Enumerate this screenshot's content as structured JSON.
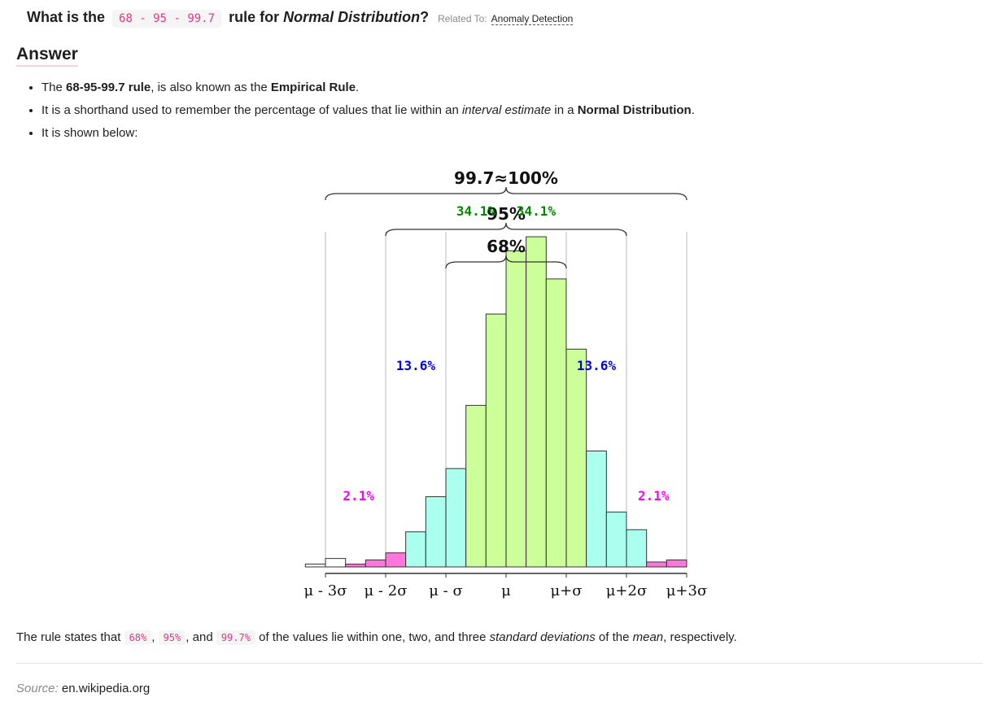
{
  "question": {
    "prefix": "What is the",
    "code": "68 - 95 - 99.7",
    "middle": "rule for",
    "emphasis": "Normal Distribution",
    "suffix": "?",
    "related_label": "Related To:",
    "related_link": "Anomaly Detection"
  },
  "answer_heading": "Answer",
  "bullets": [
    {
      "t1": "The ",
      "b1": "68-95-99.7 rule",
      "t2": ", is also known as the ",
      "b2": "Empirical Rule",
      "t3": "."
    },
    {
      "t1": "It is a shorthand used to remember the percentage of values that lie within an ",
      "i1": "interval estimate",
      "t2": " in a ",
      "b2": "Normal Distribution",
      "t3": "."
    },
    {
      "t1": "It is shown below:"
    }
  ],
  "summary": {
    "t1": "The rule states that ",
    "p1": "68%",
    "t2": ", ",
    "p2": "95%",
    "t3": ", and ",
    "p3": "99.7%",
    "t4": " of the values lie within one, two, and three ",
    "i1": "standard deviations",
    "t5": " of the ",
    "i2": "mean",
    "t6": ", respectively."
  },
  "source": {
    "label": "Source:",
    "value": "en.wikipedia.org"
  },
  "colors": {
    "inner": "#ccff99",
    "middle": "#aaffee",
    "outer": "#ff77dd",
    "tail": "#ffffff",
    "green_text": "#008800",
    "blue_text": "#0000ee",
    "magenta_text": "#ff00ff",
    "code_text": "#e8377a"
  },
  "chart_data": {
    "type": "bar",
    "title": "",
    "xlabel": "",
    "ylabel": "",
    "xlim": [
      -3.3,
      3.0
    ],
    "ylim": [
      0,
      0.55
    ],
    "bin_width": 0.333,
    "bins": [
      {
        "x": -3.167,
        "value": 0.004,
        "zone": "tail"
      },
      {
        "x": -2.833,
        "value": 0.012,
        "zone": "tail"
      },
      {
        "x": -2.5,
        "value": 0.004,
        "zone": "outer"
      },
      {
        "x": -2.167,
        "value": 0.01,
        "zone": "outer"
      },
      {
        "x": -1.833,
        "value": 0.02,
        "zone": "outer"
      },
      {
        "x": -1.5,
        "value": 0.05,
        "zone": "middle"
      },
      {
        "x": -1.167,
        "value": 0.1,
        "zone": "middle"
      },
      {
        "x": -0.833,
        "value": 0.14,
        "zone": "middle"
      },
      {
        "x": -0.5,
        "value": 0.23,
        "zone": "inner"
      },
      {
        "x": -0.167,
        "value": 0.36,
        "zone": "inner"
      },
      {
        "x": 0.167,
        "value": 0.45,
        "zone": "inner"
      },
      {
        "x": 0.5,
        "value": 0.47,
        "zone": "inner"
      },
      {
        "x": 0.833,
        "value": 0.41,
        "zone": "inner"
      },
      {
        "x": 1.167,
        "value": 0.31,
        "zone": "inner"
      },
      {
        "x": 1.5,
        "value": 0.165,
        "zone": "middle"
      },
      {
        "x": 1.833,
        "value": 0.078,
        "zone": "middle"
      },
      {
        "x": 2.167,
        "value": 0.053,
        "zone": "middle"
      },
      {
        "x": 2.5,
        "value": 0.007,
        "zone": "outer"
      },
      {
        "x": 2.833,
        "value": 0.01,
        "zone": "outer"
      }
    ],
    "ticks": [
      {
        "x": -3,
        "label": "μ - 3σ"
      },
      {
        "x": -2,
        "label": "μ - 2σ"
      },
      {
        "x": -1,
        "label": "μ - σ"
      },
      {
        "x": 0,
        "label": "μ"
      },
      {
        "x": 1,
        "label": "μ+σ"
      },
      {
        "x": 2,
        "label": "μ+2σ"
      },
      {
        "x": 3,
        "label": "μ+3σ"
      }
    ],
    "vlines": [
      -3,
      -2,
      -1,
      1,
      2,
      3
    ],
    "braces": [
      {
        "from": -3,
        "to": 3,
        "label": "99.7≈100%"
      },
      {
        "from": -2,
        "to": 2,
        "label": "95%"
      },
      {
        "from": -1,
        "to": 1,
        "label": "68%"
      }
    ],
    "percent_labels": [
      {
        "x": -0.5,
        "y": 0.5,
        "label": "34.1%",
        "color": "green"
      },
      {
        "x": 0.5,
        "y": 0.5,
        "label": "34.1%",
        "color": "green"
      },
      {
        "x": -1.5,
        "y": 0.28,
        "label": "13.6%",
        "color": "blue"
      },
      {
        "x": 1.5,
        "y": 0.28,
        "label": "13.6%",
        "color": "blue"
      },
      {
        "x": -2.45,
        "y": 0.095,
        "label": "2.1%",
        "color": "magenta"
      },
      {
        "x": 2.45,
        "y": 0.095,
        "label": "2.1%",
        "color": "magenta"
      }
    ]
  }
}
